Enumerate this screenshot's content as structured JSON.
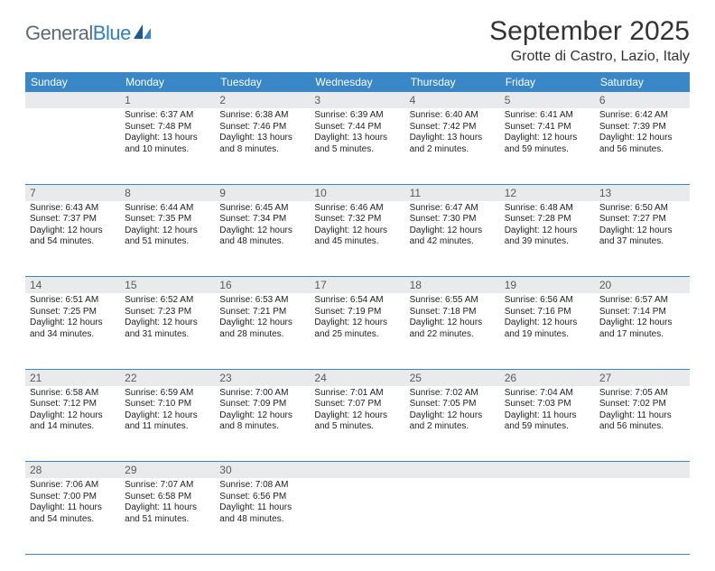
{
  "logo": {
    "text_gray": "General",
    "text_blue": "Blue"
  },
  "title": "September 2025",
  "location": "Grotte di Castro, Lazio, Italy",
  "colors": {
    "header_bg": "#3a87c7",
    "header_text": "#ffffff",
    "daynum_bg": "#e9eaeb",
    "daynum_text": "#5a5a5a",
    "cell_border": "#3a87c7",
    "logo_gray": "#5c6b78",
    "logo_blue": "#2f7fc1"
  },
  "day_names": [
    "Sunday",
    "Monday",
    "Tuesday",
    "Wednesday",
    "Thursday",
    "Friday",
    "Saturday"
  ],
  "weeks": [
    [
      null,
      {
        "n": "1",
        "sr": "6:37 AM",
        "ss": "7:48 PM",
        "dh": "13",
        "dm": "10"
      },
      {
        "n": "2",
        "sr": "6:38 AM",
        "ss": "7:46 PM",
        "dh": "13",
        "dm": "8"
      },
      {
        "n": "3",
        "sr": "6:39 AM",
        "ss": "7:44 PM",
        "dh": "13",
        "dm": "5"
      },
      {
        "n": "4",
        "sr": "6:40 AM",
        "ss": "7:42 PM",
        "dh": "13",
        "dm": "2"
      },
      {
        "n": "5",
        "sr": "6:41 AM",
        "ss": "7:41 PM",
        "dh": "12",
        "dm": "59"
      },
      {
        "n": "6",
        "sr": "6:42 AM",
        "ss": "7:39 PM",
        "dh": "12",
        "dm": "56"
      }
    ],
    [
      {
        "n": "7",
        "sr": "6:43 AM",
        "ss": "7:37 PM",
        "dh": "12",
        "dm": "54"
      },
      {
        "n": "8",
        "sr": "6:44 AM",
        "ss": "7:35 PM",
        "dh": "12",
        "dm": "51"
      },
      {
        "n": "9",
        "sr": "6:45 AM",
        "ss": "7:34 PM",
        "dh": "12",
        "dm": "48"
      },
      {
        "n": "10",
        "sr": "6:46 AM",
        "ss": "7:32 PM",
        "dh": "12",
        "dm": "45"
      },
      {
        "n": "11",
        "sr": "6:47 AM",
        "ss": "7:30 PM",
        "dh": "12",
        "dm": "42"
      },
      {
        "n": "12",
        "sr": "6:48 AM",
        "ss": "7:28 PM",
        "dh": "12",
        "dm": "39"
      },
      {
        "n": "13",
        "sr": "6:50 AM",
        "ss": "7:27 PM",
        "dh": "12",
        "dm": "37"
      }
    ],
    [
      {
        "n": "14",
        "sr": "6:51 AM",
        "ss": "7:25 PM",
        "dh": "12",
        "dm": "34"
      },
      {
        "n": "15",
        "sr": "6:52 AM",
        "ss": "7:23 PM",
        "dh": "12",
        "dm": "31"
      },
      {
        "n": "16",
        "sr": "6:53 AM",
        "ss": "7:21 PM",
        "dh": "12",
        "dm": "28"
      },
      {
        "n": "17",
        "sr": "6:54 AM",
        "ss": "7:19 PM",
        "dh": "12",
        "dm": "25"
      },
      {
        "n": "18",
        "sr": "6:55 AM",
        "ss": "7:18 PM",
        "dh": "12",
        "dm": "22"
      },
      {
        "n": "19",
        "sr": "6:56 AM",
        "ss": "7:16 PM",
        "dh": "12",
        "dm": "19"
      },
      {
        "n": "20",
        "sr": "6:57 AM",
        "ss": "7:14 PM",
        "dh": "12",
        "dm": "17"
      }
    ],
    [
      {
        "n": "21",
        "sr": "6:58 AM",
        "ss": "7:12 PM",
        "dh": "12",
        "dm": "14"
      },
      {
        "n": "22",
        "sr": "6:59 AM",
        "ss": "7:10 PM",
        "dh": "12",
        "dm": "11"
      },
      {
        "n": "23",
        "sr": "7:00 AM",
        "ss": "7:09 PM",
        "dh": "12",
        "dm": "8"
      },
      {
        "n": "24",
        "sr": "7:01 AM",
        "ss": "7:07 PM",
        "dh": "12",
        "dm": "5"
      },
      {
        "n": "25",
        "sr": "7:02 AM",
        "ss": "7:05 PM",
        "dh": "12",
        "dm": "2"
      },
      {
        "n": "26",
        "sr": "7:04 AM",
        "ss": "7:03 PM",
        "dh": "11",
        "dm": "59"
      },
      {
        "n": "27",
        "sr": "7:05 AM",
        "ss": "7:02 PM",
        "dh": "11",
        "dm": "56"
      }
    ],
    [
      {
        "n": "28",
        "sr": "7:06 AM",
        "ss": "7:00 PM",
        "dh": "11",
        "dm": "54"
      },
      {
        "n": "29",
        "sr": "7:07 AM",
        "ss": "6:58 PM",
        "dh": "11",
        "dm": "51"
      },
      {
        "n": "30",
        "sr": "7:08 AM",
        "ss": "6:56 PM",
        "dh": "11",
        "dm": "48"
      },
      null,
      null,
      null,
      null
    ]
  ]
}
